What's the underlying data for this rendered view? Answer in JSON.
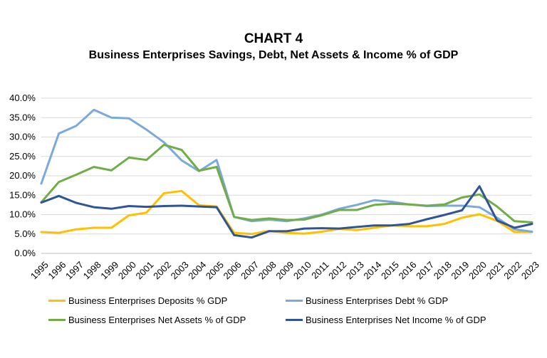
{
  "title": "CHART 4",
  "subtitle": "Business Enterprises Savings, Debt, Net Assets & Income % of GDP",
  "chart_data": {
    "type": "line",
    "x": [
      "1995",
      "1996",
      "1997",
      "1998",
      "1999",
      "2000",
      "2001",
      "2002",
      "2003",
      "2004",
      "2005",
      "2006",
      "2007",
      "2008",
      "2009",
      "2010",
      "2011",
      "2012",
      "2013",
      "2014",
      "2015",
      "2016",
      "2017",
      "2018",
      "2019",
      "2020",
      "2021",
      "2022",
      "2023"
    ],
    "ylim": [
      0,
      40
    ],
    "yticks": [
      "0.0%",
      "5.0%",
      "10.0%",
      "15.0%",
      "20.0%",
      "25.0%",
      "30.0%",
      "35.0%",
      "40.0%"
    ],
    "grid": true,
    "legend_position": "bottom",
    "series": [
      {
        "name": "Business Enterprises Deposits % GDP",
        "color": "#FFC000",
        "values": [
          5.5,
          5.3,
          6.2,
          6.6,
          6.6,
          9.8,
          10.5,
          15.5,
          16.1,
          12.4,
          12.1,
          5.3,
          5.0,
          5.8,
          5.3,
          5.1,
          5.6,
          6.3,
          6.0,
          6.6,
          7.2,
          7.0,
          7.0,
          7.6,
          9.2,
          10.1,
          8.4,
          5.5,
          5.5
        ]
      },
      {
        "name": "Business Enterprises Debt % GDP",
        "color": "#7BA9DC",
        "values": [
          18.0,
          30.9,
          32.9,
          37.0,
          35.0,
          34.8,
          31.9,
          28.6,
          24.0,
          21.2,
          24.1,
          9.4,
          8.3,
          8.7,
          8.3,
          9.0,
          10.0,
          11.5,
          12.5,
          13.7,
          13.3,
          12.6,
          12.2,
          12.3,
          12.3,
          11.9,
          9.2,
          6.2,
          5.6
        ]
      },
      {
        "name": "Business Enterprises Net Assets % of GDP",
        "color": "#70AD47",
        "values": [
          13.2,
          18.4,
          20.3,
          22.3,
          21.4,
          24.7,
          24.1,
          28.0,
          26.7,
          21.3,
          22.3,
          9.4,
          8.6,
          9.0,
          8.6,
          8.7,
          9.8,
          11.2,
          11.2,
          12.5,
          12.8,
          12.6,
          12.3,
          12.6,
          14.4,
          15.2,
          12.1,
          8.3,
          8.0
        ]
      },
      {
        "name": "Business Enterprises Net Income % of GDP",
        "color": "#2F5597",
        "values": [
          13.1,
          14.8,
          13.0,
          11.9,
          11.5,
          12.2,
          12.0,
          12.2,
          12.3,
          12.1,
          11.9,
          4.7,
          4.1,
          5.7,
          5.7,
          6.4,
          6.5,
          6.4,
          6.8,
          7.2,
          7.2,
          7.6,
          8.8,
          9.9,
          11.1,
          17.3,
          8.5,
          6.6,
          7.6
        ]
      }
    ]
  }
}
